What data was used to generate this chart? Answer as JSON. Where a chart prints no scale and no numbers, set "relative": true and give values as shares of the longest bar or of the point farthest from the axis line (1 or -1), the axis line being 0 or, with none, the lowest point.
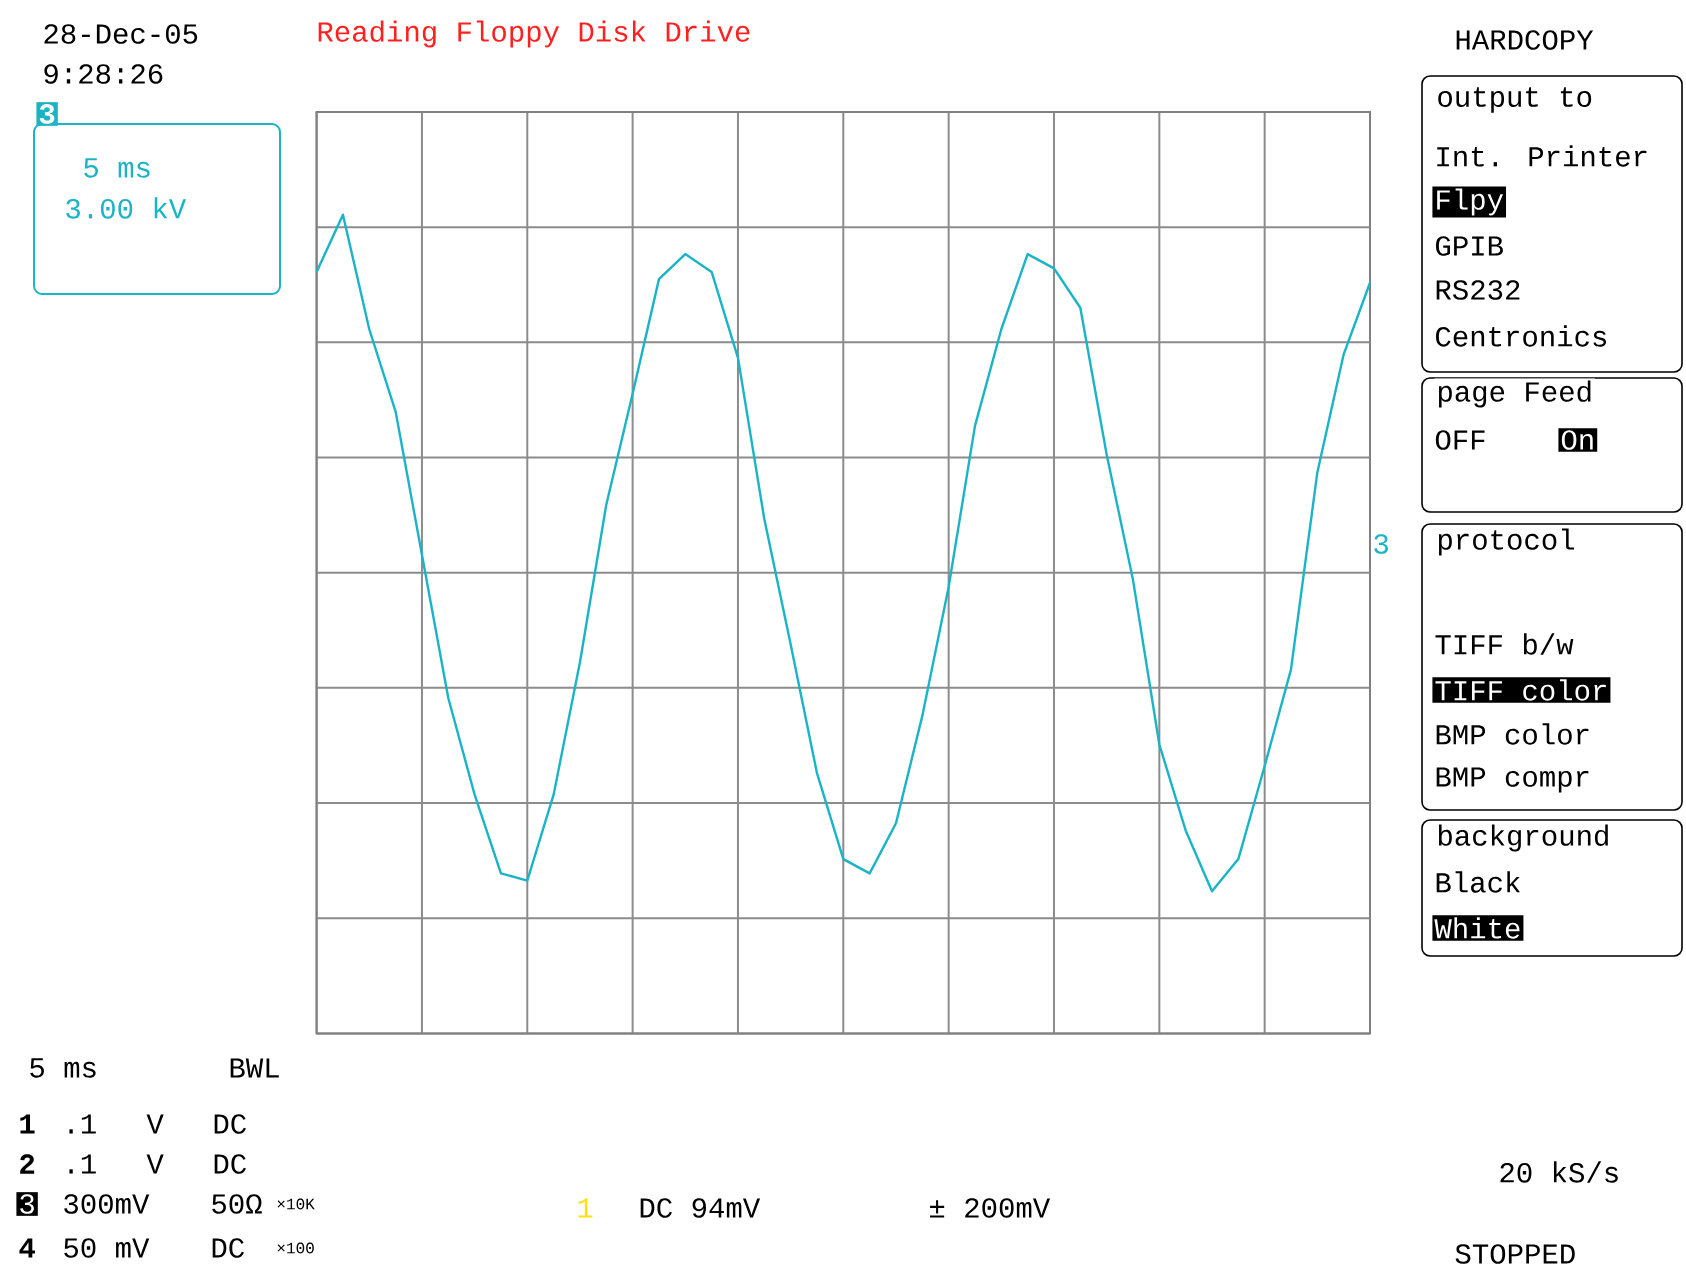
{
  "chart_data": {
    "type": "line",
    "title": "Reading Floppy Disk Drive",
    "relative": true,
    "grid": true,
    "categories": [
      null,
      null,
      null,
      null,
      null,
      null,
      null,
      null,
      null,
      null,
      null,
      null,
      null,
      null,
      null,
      null,
      null,
      null,
      null,
      null,
      null,
      null,
      null,
      null,
      null,
      null,
      null,
      null,
      null,
      null,
      null,
      null,
      null,
      null,
      null,
      null,
      null,
      null,
      null,
      null,
      null
    ],
    "series": [
      {
        "color": "#1ab4c6",
        "values": [
          0.84,
          1.0,
          0.68,
          0.45,
          0.05,
          -0.35,
          -0.62,
          -0.84,
          -0.86,
          -0.62,
          -0.25,
          0.19,
          0.5,
          0.82,
          0.89,
          0.84,
          0.6,
          0.15,
          -0.2,
          -0.56,
          -0.8,
          -0.84,
          -0.7,
          -0.4,
          -0.04,
          0.41,
          0.68,
          0.89,
          0.85,
          0.74,
          0.33,
          -0.02,
          -0.48,
          -0.72,
          -0.89,
          -0.8,
          -0.54,
          -0.27,
          0.28,
          0.61,
          0.81
        ]
      }
    ],
    "annotations": [
      "28-Dec-05",
      "9:28:26",
      "3",
      "5 ms",
      "3.00 kV",
      "HARDCOPY",
      "output to",
      "Int. Printer",
      "Flpy",
      "GPIB",
      "RS232",
      "Centronics",
      "page Feed",
      "OFF",
      "On",
      "protocol",
      "TIFF b/w",
      "TIFF color",
      "BMP color",
      "BMP compr",
      "background",
      "Black",
      "White",
      "3",
      "5 ms",
      "BWL",
      "1",
      ".1",
      "V",
      "DC",
      "2",
      ".1",
      "V",
      "DC",
      "3",
      "300mV",
      "50Ω",
      "×10K",
      "4",
      "50 mV",
      "DC",
      "×100",
      "1",
      "DC 94mV",
      "± 200mV",
      "20 kS/s",
      "STOPPED"
    ]
  }
}
